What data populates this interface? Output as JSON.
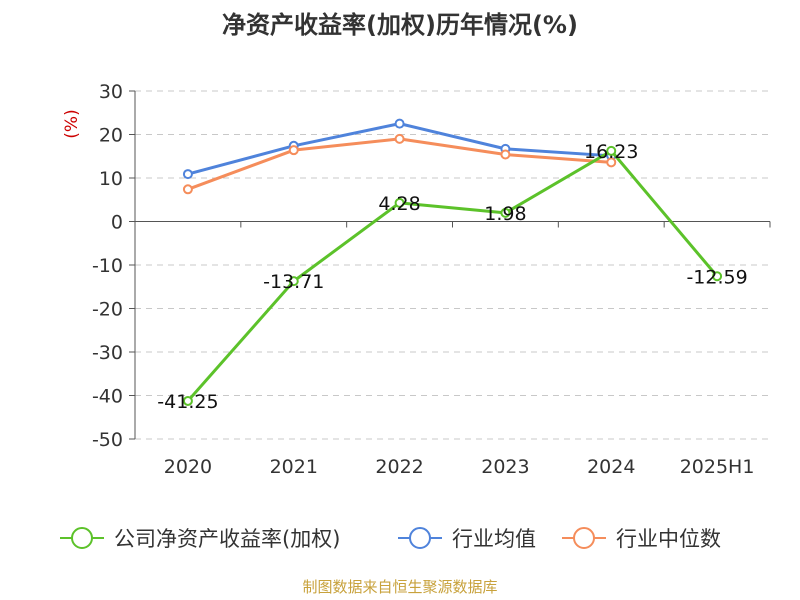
{
  "chart_data": {
    "type": "line",
    "title": "净资产收益率(加权)历年情况(%)",
    "ylabel": "(%)",
    "xlabel": "",
    "categories": [
      "2020",
      "2021",
      "2022",
      "2023",
      "2024",
      "2025H1"
    ],
    "ylim": [
      -50,
      30
    ],
    "yticks": [
      30,
      20,
      10,
      0,
      -10,
      -20,
      -30,
      -40,
      -50
    ],
    "grid": true,
    "legend_position": "bottom",
    "series": [
      {
        "name": "公司净资产收益率(加权)",
        "color": "#5cc22a",
        "values": [
          -41.25,
          -13.71,
          4.28,
          1.98,
          16.23,
          -12.59
        ],
        "labels": [
          "-41.25",
          "-13.71",
          "4.28",
          "1.98",
          "16.23",
          "-12.59"
        ]
      },
      {
        "name": "行业均值",
        "color": "#4f83db",
        "values": [
          10.9,
          17.4,
          22.5,
          16.7,
          15.1,
          null
        ]
      },
      {
        "name": "行业中位数",
        "color": "#f58d5b",
        "values": [
          7.4,
          16.4,
          19.0,
          15.4,
          13.6,
          null
        ]
      }
    ]
  },
  "source": "制图数据来自恒生聚源数据库"
}
